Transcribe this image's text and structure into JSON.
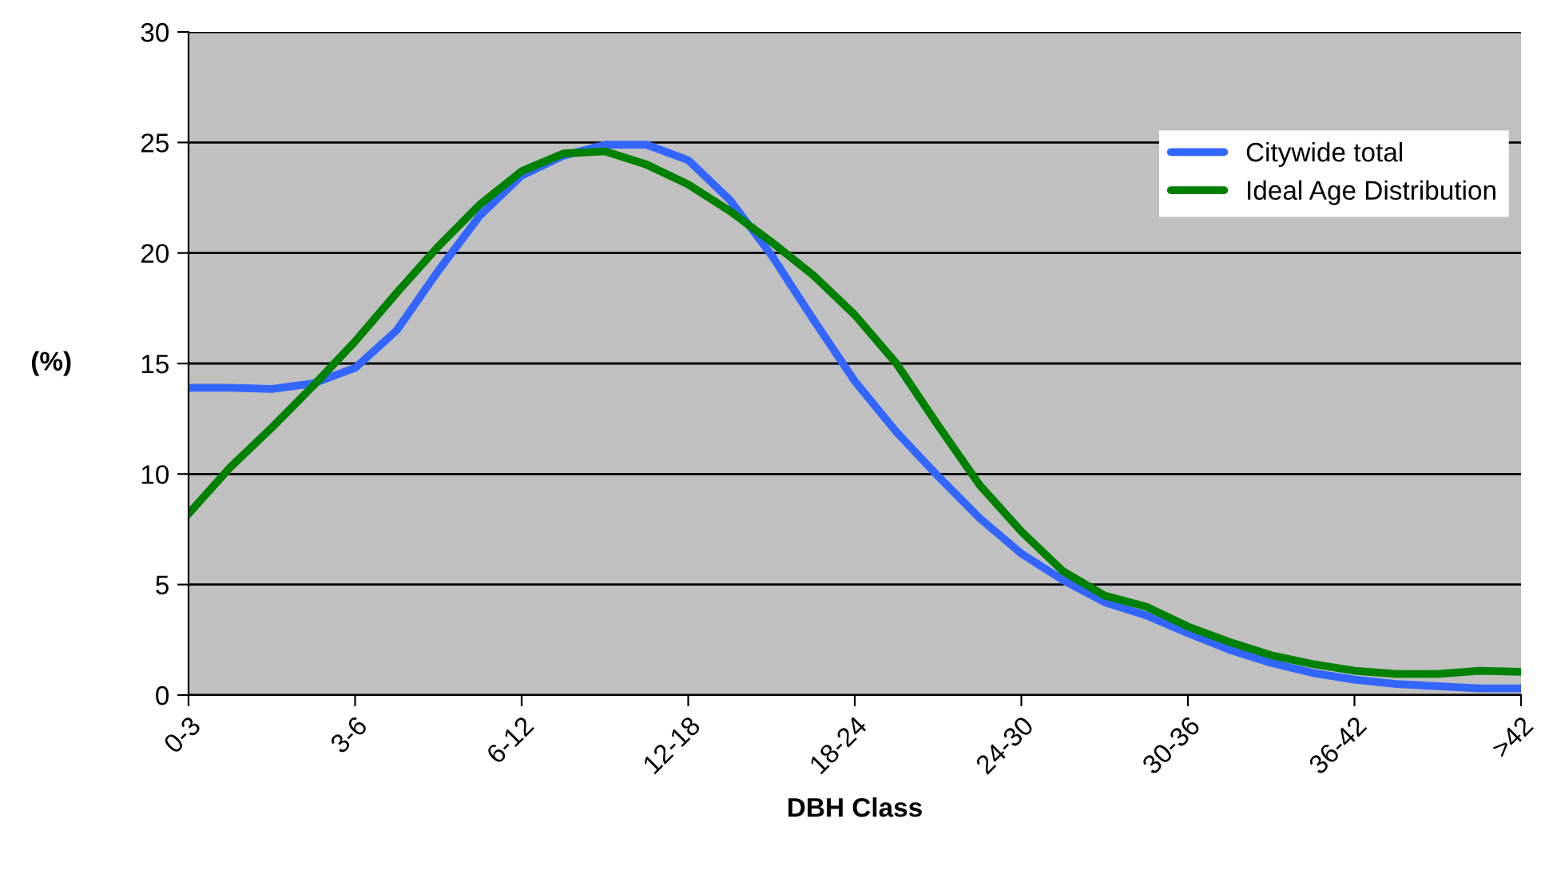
{
  "chart_data": {
    "type": "line",
    "xlabel": "DBH Class",
    "ylabel": "(%)",
    "categories": [
      "0-3",
      null,
      null,
      null,
      "3-6",
      null,
      null,
      null,
      "6-12",
      null,
      null,
      null,
      "12-18",
      null,
      null,
      null,
      "18-24",
      null,
      null,
      null,
      "24-30",
      null,
      null,
      null,
      "30-36",
      null,
      null,
      null,
      "36-42",
      null,
      null,
      null,
      ">42"
    ],
    "series": [
      {
        "name": "Citywide total",
        "color": "#3366ff",
        "values": [
          13.9,
          13.9,
          13.85,
          14.1,
          14.8,
          16.5,
          19.2,
          21.7,
          23.5,
          24.4,
          24.9,
          24.9,
          24.2,
          22.4,
          19.9,
          17.0,
          14.2,
          11.9,
          9.9,
          8.0,
          6.4,
          5.2,
          4.2,
          3.6,
          2.8,
          2.05,
          1.45,
          1.0,
          0.7,
          0.5,
          0.4,
          0.3,
          0.3
        ]
      },
      {
        "name": "Ideal Age Distribution",
        "color": "#008000",
        "values": [
          8.2,
          10.3,
          12.1,
          14.0,
          16.0,
          18.2,
          20.3,
          22.2,
          23.7,
          24.5,
          24.6,
          24.0,
          23.1,
          21.9,
          20.5,
          19.0,
          17.2,
          15.0,
          12.2,
          9.5,
          7.4,
          5.6,
          4.5,
          4.0,
          3.1,
          2.4,
          1.8,
          1.4,
          1.1,
          0.95,
          0.95,
          1.1,
          1.05
        ]
      }
    ],
    "ylim": [
      0,
      30
    ],
    "yticks": [
      0,
      5,
      10,
      15,
      20,
      25,
      30
    ],
    "grid": "y",
    "legend": "top right",
    "line_style": "solid",
    "marker": "none"
  }
}
